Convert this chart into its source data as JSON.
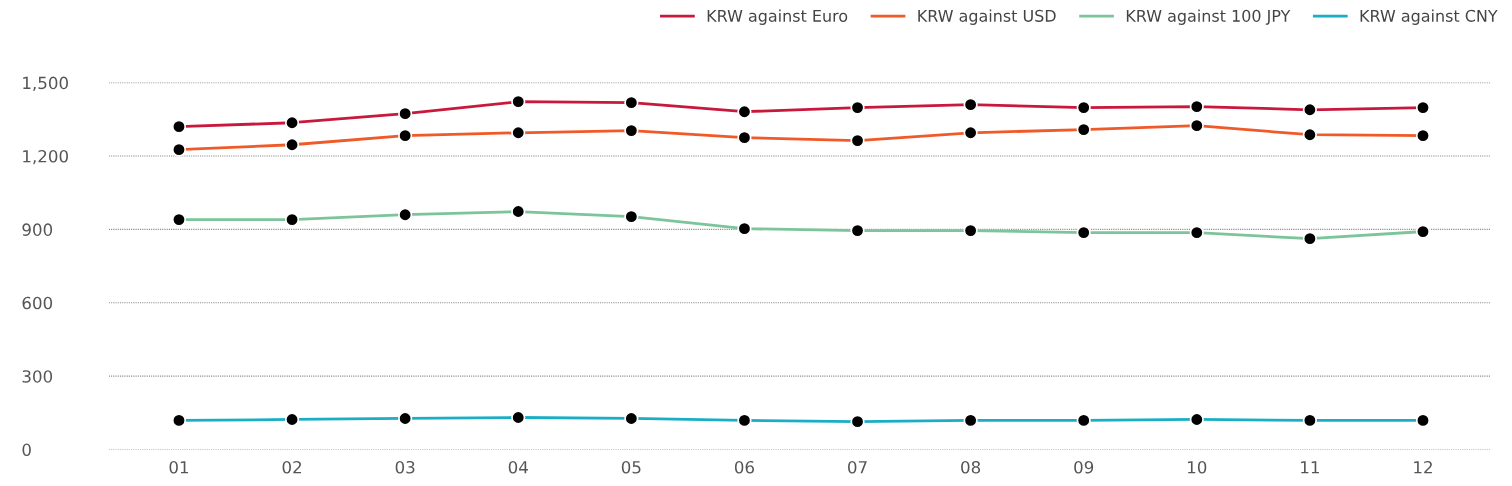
{
  "chart_data": {
    "type": "line",
    "categories": [
      "01",
      "02",
      "03",
      "04",
      "05",
      "06",
      "07",
      "08",
      "09",
      "10",
      "11",
      "12"
    ],
    "series": [
      {
        "name": "KRW against Euro",
        "color": "#c8193c",
        "values": [
          1320,
          1336,
          1373,
          1422,
          1418,
          1381,
          1398,
          1410,
          1398,
          1402,
          1389,
          1398
        ]
      },
      {
        "name": "KRW against USD",
        "color": "#f05a28",
        "values": [
          1226,
          1246,
          1283,
          1295,
          1304,
          1275,
          1263,
          1295,
          1308,
          1324,
          1287,
          1283
        ]
      },
      {
        "name": "KRW against 100 JPY",
        "color": "#7cc59a",
        "values": [
          940,
          940,
          960,
          973,
          952,
          903,
          895,
          895,
          887,
          887,
          862,
          891
        ]
      },
      {
        "name": "KRW against CNY",
        "color": "#1aaec4",
        "values": [
          119,
          123,
          127,
          131,
          127,
          119,
          114,
          119,
          119,
          123,
          119,
          119
        ]
      }
    ],
    "ylim": [
      0,
      1500
    ],
    "yticks": [
      {
        "value": 0,
        "label": "0"
      },
      {
        "value": 300,
        "label": "300"
      },
      {
        "value": 600,
        "label": "600"
      },
      {
        "value": 900,
        "label": "900"
      },
      {
        "value": 1200,
        "label": "1,200"
      },
      {
        "value": 1500,
        "label": "1,500"
      }
    ],
    "grid": "y",
    "legend": "top right",
    "marker": "circle",
    "line_style": "solid"
  }
}
